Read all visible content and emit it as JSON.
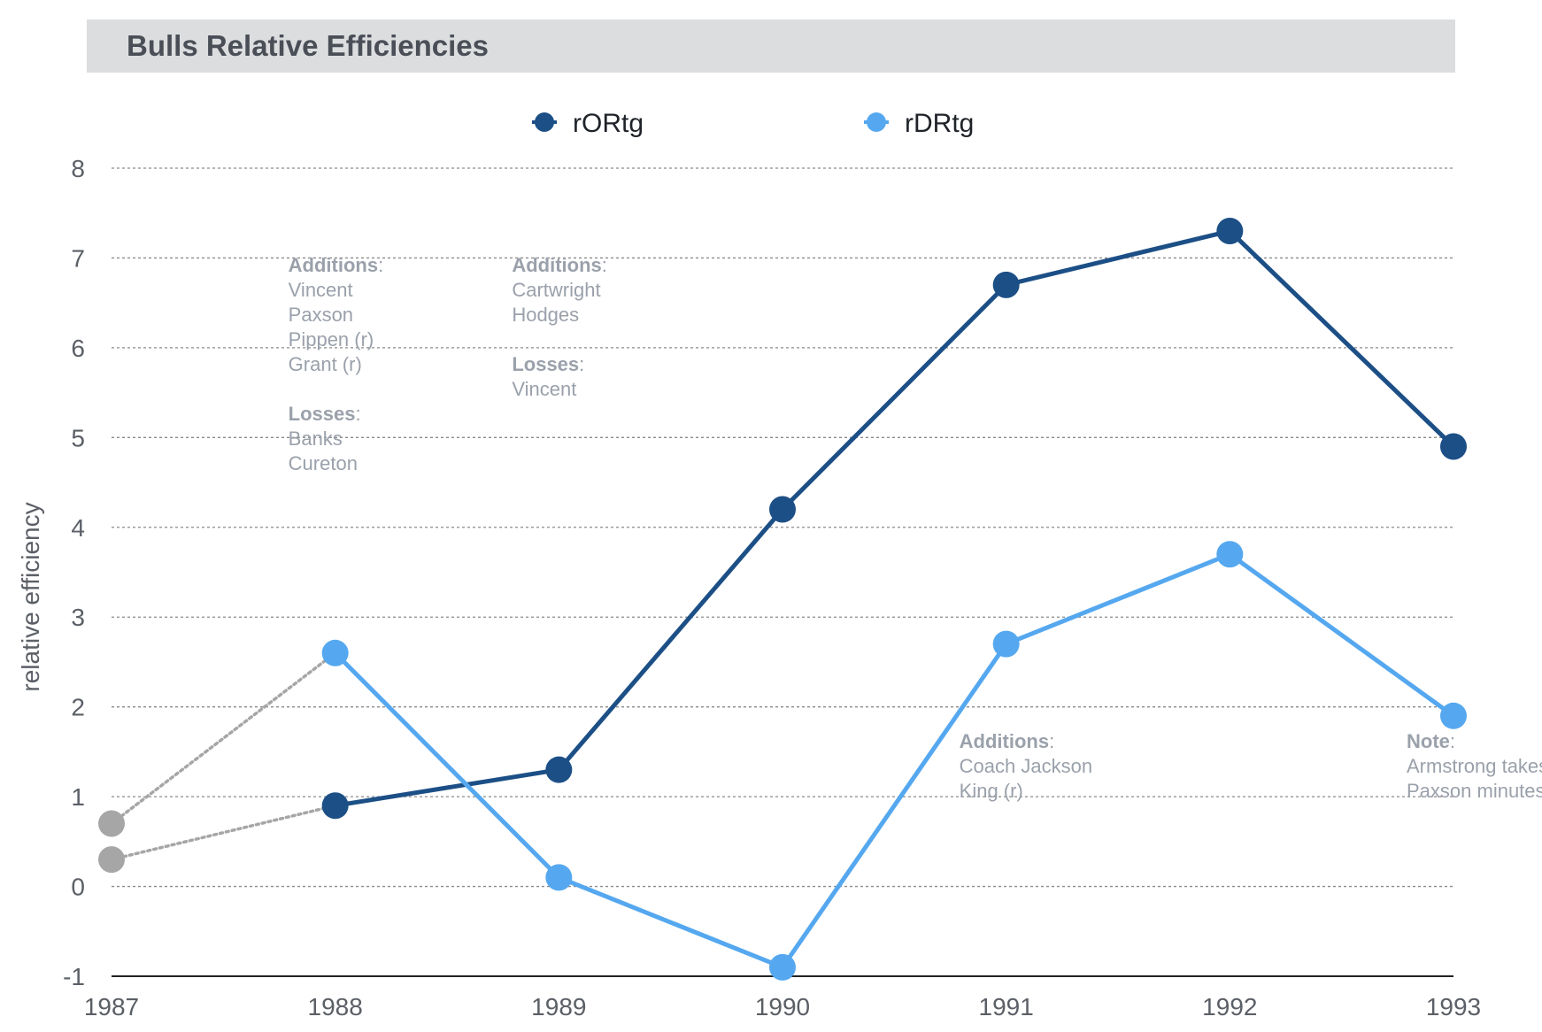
{
  "title": "Bulls Relative Efficiencies",
  "colors": {
    "rORtg": "#1c4f86",
    "rDRtg": "#55a8ef",
    "prior": "#a6a6a6",
    "grid": "#8a8a8a",
    "axis": "#222222"
  },
  "chart_data": {
    "type": "line",
    "title": "Bulls Relative Efficiencies",
    "xlabel": "",
    "ylabel": "relative efficiency",
    "x": [
      1987,
      1988,
      1989,
      1990,
      1991,
      1992,
      1993
    ],
    "x_tick_labels": [
      "1987",
      "1988",
      "1989",
      "1990",
      "1991",
      "1992",
      "1993"
    ],
    "y_ticks": [
      -1,
      0,
      1,
      2,
      3,
      4,
      5,
      6,
      7,
      8
    ],
    "y_tick_labels": [
      "-1",
      "0",
      "1",
      "2",
      "3",
      "4",
      "5",
      "6",
      "7",
      "8"
    ],
    "ylim": [
      -1,
      8
    ],
    "grid": true,
    "legend_position": "top-center",
    "series": [
      {
        "name": "rORtg",
        "color": "#1c4f86",
        "x": [
          1988,
          1989,
          1990,
          1991,
          1992,
          1993
        ],
        "values": [
          0.9,
          1.3,
          4.2,
          6.7,
          7.3,
          4.9
        ]
      },
      {
        "name": "rDRtg",
        "color": "#55a8ef",
        "x": [
          1988,
          1989,
          1990,
          1991,
          1992,
          1993
        ],
        "values": [
          2.6,
          0.1,
          -0.9,
          2.7,
          3.7,
          1.9
        ]
      }
    ],
    "prior_segments": [
      {
        "color": "#a6a6a6",
        "style": "dotted",
        "from": [
          1987,
          0.3
        ],
        "to": [
          1988,
          0.9
        ]
      },
      {
        "color": "#a6a6a6",
        "style": "dotted",
        "from": [
          1987,
          0.7
        ],
        "to": [
          1988,
          2.6
        ]
      }
    ],
    "annotations": [
      {
        "x": 1988,
        "y": 7.05,
        "align": "left",
        "blocks": [
          {
            "head": "Additions",
            "items": [
              "Vincent",
              "Paxson",
              "Pippen (r)",
              "Grant (r)"
            ]
          },
          {
            "head": "Losses",
            "items": [
              "Banks",
              "Cureton"
            ]
          }
        ]
      },
      {
        "x": 1989,
        "y": 7.05,
        "align": "left",
        "blocks": [
          {
            "head": "Additions",
            "items": [
              "Cartwright",
              "Hodges"
            ]
          },
          {
            "head": "Losses",
            "items": [
              "Vincent"
            ]
          }
        ]
      },
      {
        "x": 1991,
        "y": 1.75,
        "align": "left",
        "blocks": [
          {
            "head": "Additions",
            "items": [
              "Coach Jackson",
              "King (r)"
            ]
          }
        ]
      },
      {
        "x": 1993,
        "y": 1.75,
        "align": "left",
        "blocks": [
          {
            "head": "Note",
            "items": [
              "Armstrong takes",
              "Paxson minutes"
            ]
          }
        ]
      }
    ]
  }
}
